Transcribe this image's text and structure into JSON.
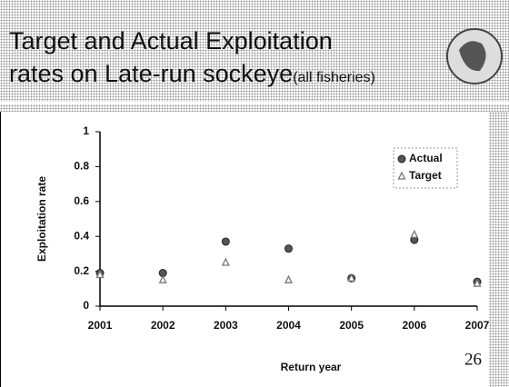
{
  "title_lines": [
    "Target and Actual Exploitation",
    "rates on Late-run sockeye"
  ],
  "title_note": "(all fisheries)",
  "slide_number": "26",
  "chart_data": {
    "type": "scatter",
    "x_label": "Return year",
    "y_label": "Exploitation rate",
    "xlim": [
      2001,
      2007
    ],
    "xticks": [
      2001,
      2002,
      2003,
      2004,
      2005,
      2006,
      2007
    ],
    "ylim": [
      0,
      1
    ],
    "yticks": [
      0,
      0.2,
      0.4,
      0.6,
      0.8,
      1
    ],
    "legend": "upper right",
    "series": [
      {
        "name": "Actual",
        "color": "#555555",
        "marker": "circle",
        "x": [
          2001,
          2002,
          2003,
          2004,
          2005,
          2006,
          2007
        ],
        "values": [
          0.19,
          0.19,
          0.37,
          0.33,
          0.16,
          0.38,
          0.14
        ]
      },
      {
        "name": "Target",
        "color": "#777777",
        "marker": "triangle",
        "x": [
          2001,
          2002,
          2003,
          2004,
          2005,
          2006,
          2007
        ],
        "values": [
          0.18,
          0.15,
          0.25,
          0.15,
          0.16,
          0.41,
          0.13
        ]
      }
    ]
  }
}
